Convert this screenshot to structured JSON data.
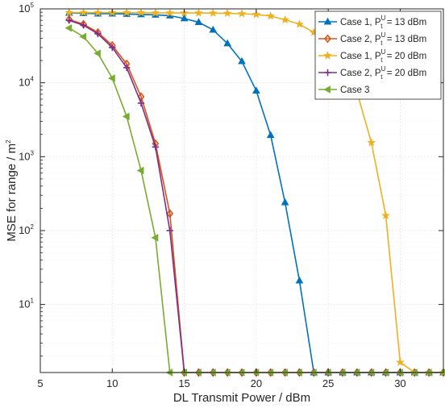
{
  "chart_data": {
    "type": "line",
    "xlabel": "DL Transmit Power / dBm",
    "ylabel": "MSE for range / m",
    "ylabel_sup": "2",
    "xscale": "linear",
    "yscale": "log",
    "xlim": [
      5,
      33
    ],
    "ylim": [
      1.2,
      100000
    ],
    "xticks": [
      5,
      10,
      15,
      20,
      25,
      30
    ],
    "xtick_labels": [
      "5",
      "10",
      "15",
      "20",
      "25",
      "30"
    ],
    "yticks": [
      10,
      100,
      1000,
      10000,
      100000
    ],
    "ytick_labels": [
      {
        "base": "10",
        "exp": "1"
      },
      {
        "base": "10",
        "exp": "2"
      },
      {
        "base": "10",
        "exp": "3"
      },
      {
        "base": "10",
        "exp": "4"
      },
      {
        "base": "10",
        "exp": "5"
      }
    ],
    "grid": true,
    "legend_position": "top-right",
    "series": [
      {
        "legend": {
          "text": "Case 1, P",
          "sub": "t",
          "sup": "U",
          "suffix": " = 13 dBm"
        },
        "color": "#0072bd",
        "marker": "triangle-up",
        "x": [
          7,
          8,
          9,
          10,
          11,
          12,
          13,
          14,
          15,
          16,
          17,
          18,
          19,
          20,
          21,
          22,
          23,
          24,
          25,
          26,
          27,
          28,
          29,
          30,
          31,
          32,
          33
        ],
        "y": [
          88000,
          87000,
          86000,
          86000,
          85000,
          84000,
          83000,
          81000,
          74000,
          66000,
          52000,
          34000,
          19500,
          7800,
          1950,
          240,
          21,
          1.2,
          1.2,
          1.2,
          1.2,
          1.2,
          1.2,
          1.2,
          1.2,
          1.2,
          1.2
        ]
      },
      {
        "legend": {
          "text": "Case 2, P",
          "sub": "t",
          "sup": "U",
          "suffix": " = 13 dBm"
        },
        "color": "#d95319",
        "marker": "diamond",
        "x": [
          7,
          8,
          9,
          10,
          11,
          12,
          13,
          14,
          15,
          16,
          17,
          18,
          19,
          20,
          21,
          22,
          23,
          24,
          25,
          26,
          27,
          28,
          29,
          30,
          31,
          32,
          33
        ],
        "y": [
          72000,
          62000,
          48000,
          32000,
          18000,
          6500,
          1500,
          170,
          1.2,
          1.2,
          1.2,
          1.2,
          1.2,
          1.2,
          1.2,
          1.2,
          1.2,
          1.2,
          1.2,
          1.2,
          1.2,
          1.2,
          1.2,
          1.2,
          1.2,
          1.2,
          1.2
        ]
      },
      {
        "legend": {
          "text": "Case 1, P",
          "sub": "t",
          "sup": "U",
          "suffix": " = 20 dBm"
        },
        "color": "#edb120",
        "marker": "star",
        "x": [
          7,
          8,
          9,
          10,
          11,
          12,
          13,
          14,
          15,
          16,
          17,
          18,
          19,
          20,
          21,
          22,
          23,
          24,
          25,
          26,
          27,
          28,
          29,
          30,
          31,
          32,
          33
        ],
        "y": [
          89000,
          89000,
          89000,
          89000,
          89000,
          89000,
          88000,
          88000,
          88000,
          88000,
          87500,
          87000,
          86000,
          84000,
          80000,
          71000,
          62000,
          48000,
          30000,
          17000,
          7500,
          1550,
          160,
          1.65,
          1.2,
          1.2,
          1.2
        ]
      },
      {
        "legend": {
          "text": "Case 2, P",
          "sub": "t",
          "sup": "U",
          "suffix": " = 20 dBm"
        },
        "color": "#7e2f8e",
        "marker": "plus",
        "x": [
          7,
          8,
          9,
          10,
          11,
          12,
          13,
          14,
          15,
          16,
          17,
          18,
          19,
          20,
          21,
          22,
          23,
          24,
          25,
          26,
          27,
          28,
          29,
          30,
          31,
          32,
          33
        ],
        "y": [
          70000,
          60000,
          46000,
          30000,
          16000,
          5300,
          1350,
          100,
          1.2,
          1.2,
          1.2,
          1.2,
          1.2,
          1.2,
          1.2,
          1.2,
          1.2,
          1.2,
          1.2,
          1.2,
          1.2,
          1.2,
          1.2,
          1.2,
          1.2,
          1.2,
          1.2
        ]
      },
      {
        "legend": {
          "text": "Case 3",
          "sub": "",
          "sup": "",
          "suffix": ""
        },
        "color": "#77ac30",
        "marker": "triangle-left",
        "x": [
          7,
          8,
          9,
          10,
          11,
          12,
          13,
          14,
          15,
          16,
          17,
          18,
          19,
          20,
          21,
          22,
          23,
          24,
          25,
          26,
          27,
          28,
          29,
          30,
          31,
          32,
          33
        ],
        "y": [
          55000,
          42000,
          25000,
          11500,
          3500,
          650,
          80,
          1.2,
          1.2,
          1.2,
          1.2,
          1.2,
          1.2,
          1.2,
          1.2,
          1.2,
          1.2,
          1.2,
          1.2,
          1.2,
          1.2,
          1.2,
          1.2,
          1.2,
          1.2,
          1.2,
          1.2
        ]
      }
    ]
  }
}
